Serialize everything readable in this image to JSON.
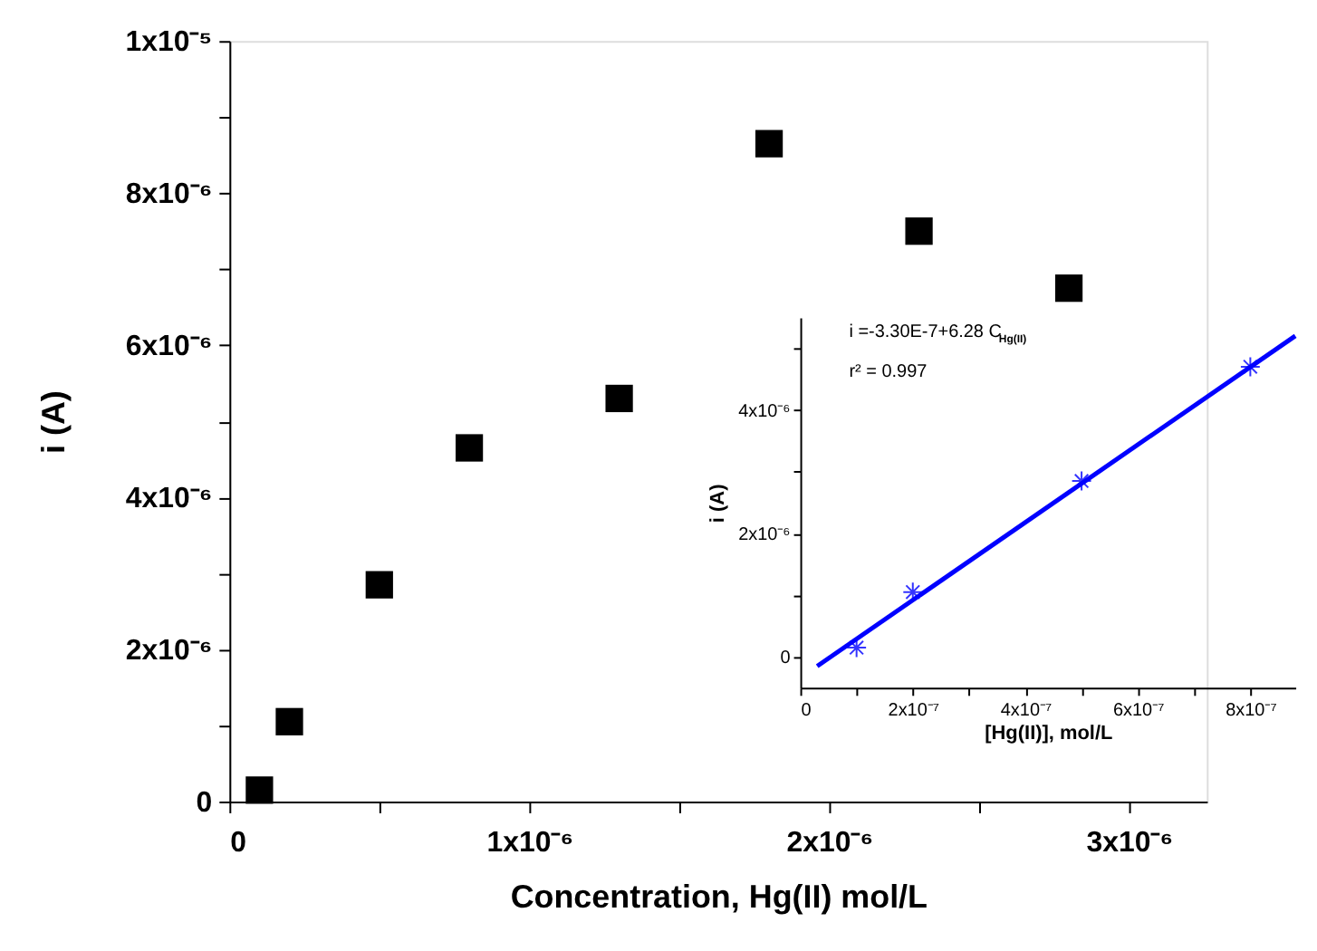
{
  "chart_data": [
    {
      "type": "scatter",
      "xlabel": "Concentration, Hg(II) mol/L",
      "ylabel": "i (A)",
      "marker": "square",
      "grid": false,
      "xlim": [
        0,
        3.26e-06
      ],
      "ylim": [
        0,
        1e-05
      ],
      "xticks": [
        {
          "value": 0,
          "label": "0"
        },
        {
          "value": 5e-07,
          "label": null
        },
        {
          "value": 1e-06,
          "label": "1x10⁻⁶"
        },
        {
          "value": 1.5e-06,
          "label": null
        },
        {
          "value": 2e-06,
          "label": "2x10⁻⁶"
        },
        {
          "value": 2.5e-06,
          "label": null
        },
        {
          "value": 3e-06,
          "label": "3x10⁻⁶"
        }
      ],
      "yticks": [
        {
          "value": 0,
          "label": "0"
        },
        {
          "value": 1e-06,
          "label": null
        },
        {
          "value": 2e-06,
          "label": "2x10⁻⁶"
        },
        {
          "value": 3e-06,
          "label": null
        },
        {
          "value": 4e-06,
          "label": "4x10⁻⁶"
        },
        {
          "value": 5e-06,
          "label": null
        },
        {
          "value": 6e-06,
          "label": "6x10⁻⁶"
        },
        {
          "value": 7e-06,
          "label": null
        },
        {
          "value": 8e-06,
          "label": "8x10⁻⁶"
        },
        {
          "value": 9e-06,
          "label": null
        },
        {
          "value": 1e-05,
          "label": "1x10⁻⁵"
        }
      ],
      "series": [
        {
          "color": "#000000",
          "x": [
            1e-07,
            2e-07,
            5e-07,
            8e-07,
            1.3e-06,
            1.8e-06,
            2.3e-06,
            2.8e-06
          ],
          "values": [
            1.5e-07,
            1.05e-06,
            2.85e-06,
            4.65e-06,
            5.3e-06,
            8.65e-06,
            7.5e-06,
            6.75e-06
          ]
        }
      ]
    },
    {
      "type": "scatter",
      "xlabel": "[Hg(II)], mol/L",
      "ylabel": "i (A)",
      "marker": "cross",
      "grid": false,
      "xlim": [
        0,
        8.8e-07
      ],
      "ylim": [
        -5e-07,
        5.5e-06
      ],
      "xticks": [
        {
          "value": 0,
          "label": "0"
        },
        {
          "value": 1e-07,
          "label": null
        },
        {
          "value": 2e-07,
          "label": "2x10⁻⁷"
        },
        {
          "value": 3e-07,
          "label": null
        },
        {
          "value": 4e-07,
          "label": "4x10⁻⁷"
        },
        {
          "value": 5e-07,
          "label": null
        },
        {
          "value": 6e-07,
          "label": "6x10⁻⁷"
        },
        {
          "value": 7e-07,
          "label": null
        },
        {
          "value": 8e-07,
          "label": "8x10⁻⁷"
        }
      ],
      "yticks": [
        {
          "value": 0,
          "label": "0"
        },
        {
          "value": 1e-06,
          "label": null
        },
        {
          "value": 2e-06,
          "label": "2x10⁻⁶"
        },
        {
          "value": 3e-06,
          "label": null
        },
        {
          "value": 4e-06,
          "label": "4x10⁻⁶"
        },
        {
          "value": 5e-06,
          "label": null
        }
      ],
      "annotations": [
        "i =-3.30E-7+6.28 C$_{Hg(II)}$",
        "r² = 0.997"
      ],
      "series": [
        {
          "color": "#3333ff",
          "x": [
            1e-07,
            2e-07,
            5e-07,
            8e-07
          ],
          "values": [
            1.5e-07,
            1.05e-06,
            2.85e-06,
            4.7e-06
          ]
        },
        {
          "type": "line",
          "marker": "none",
          "line_style": "solid",
          "color": "#0000ff",
          "x": [
            3e-08,
            8.8e-07
          ],
          "values": [
            -1.5e-07,
            5.2e-06
          ]
        }
      ]
    }
  ]
}
